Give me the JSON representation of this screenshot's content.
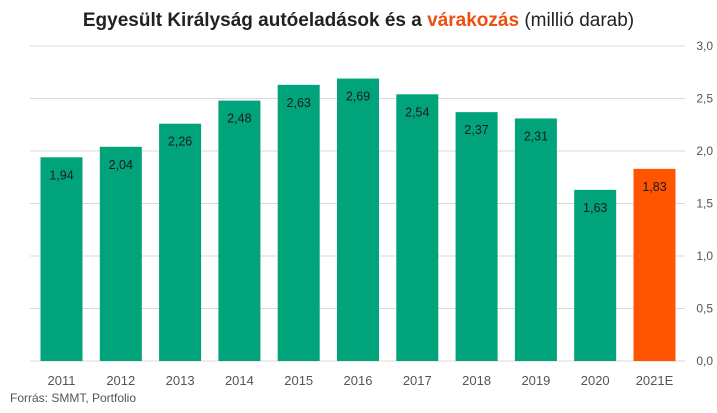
{
  "title": {
    "main": "Egyesült Királyság autóeladások és a",
    "highlight": "várakozás",
    "unit": "(millió darab)"
  },
  "source": "Forrás: SMMT, Portfolio",
  "colors": {
    "actual": "#00a37a",
    "estimate": "#ff5500",
    "highlight_text": "#f04e0f",
    "grid": "#d9d9d9"
  },
  "chart_data": {
    "type": "bar",
    "categories": [
      "2011",
      "2012",
      "2013",
      "2014",
      "2015",
      "2016",
      "2017",
      "2018",
      "2019",
      "2020",
      "2021E"
    ],
    "values": [
      1.94,
      2.04,
      2.26,
      2.48,
      2.63,
      2.69,
      2.54,
      2.37,
      2.31,
      1.63,
      1.83
    ],
    "data_labels": [
      "1,94",
      "2,04",
      "2,26",
      "2,48",
      "2,63",
      "2,69",
      "2,54",
      "2,37",
      "2,31",
      "1,63",
      "1,83"
    ],
    "estimate_categories": [
      "2021E"
    ],
    "ylim": [
      0,
      3.0
    ],
    "yticks": [
      0,
      0.5,
      1.0,
      1.5,
      2.0,
      2.5,
      3.0
    ],
    "ytick_labels": [
      "0,0",
      "0,5",
      "1,0",
      "1,5",
      "2,0",
      "2,5",
      "3,0"
    ],
    "y_axis_side": "right",
    "grid": true,
    "legend": "none"
  }
}
